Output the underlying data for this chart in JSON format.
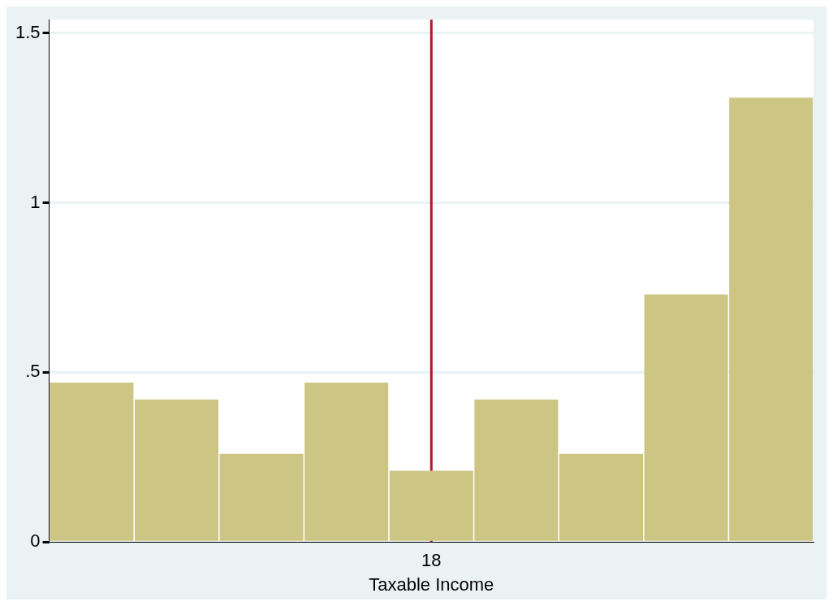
{
  "chart_data": {
    "type": "bar",
    "xlabel": "Taxable Income",
    "categories": [
      null,
      null,
      null,
      null,
      "18",
      null,
      null,
      null,
      null
    ],
    "values": [
      0.47,
      0.42,
      0.26,
      0.47,
      0.21,
      0.42,
      0.26,
      0.73,
      1.31
    ],
    "color": "#cdc584",
    "ylim": [
      0,
      1.54
    ],
    "yticks": [
      0,
      {
        "value": 0.5,
        "label": ".5"
      },
      1,
      1.5
    ],
    "grid": "y",
    "legend": false,
    "ref_lines": [
      {
        "axis": "x",
        "value": "18",
        "color": "#b0182f"
      }
    ]
  }
}
